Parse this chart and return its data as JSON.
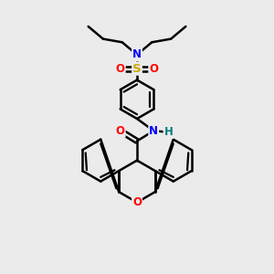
{
  "bg_color": "#ebebeb",
  "bond_color": "#000000",
  "bond_width": 1.8,
  "atom_colors": {
    "N": "#0000ff",
    "O": "#ff0000",
    "S": "#ccaa00",
    "H": "#008080",
    "C": "#000000"
  },
  "figsize": [
    3.0,
    3.0
  ],
  "dpi": 100
}
